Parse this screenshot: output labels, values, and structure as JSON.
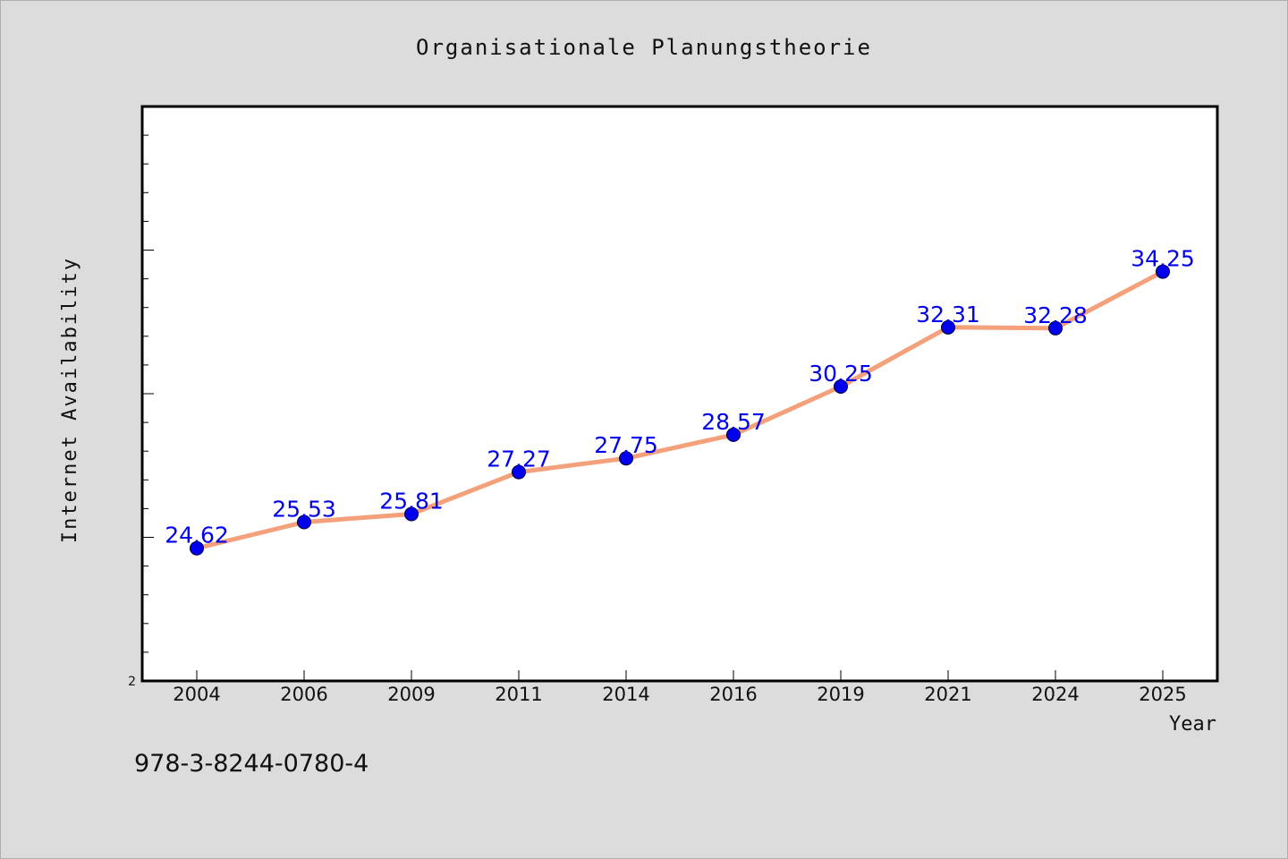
{
  "chart_data": {
    "type": "line",
    "title": "Organisationale Planungstheorie",
    "xlabel": "Year",
    "ylabel": "Internet Availability",
    "categories": [
      "2004",
      "2006",
      "2009",
      "2011",
      "2014",
      "2016",
      "2019",
      "2021",
      "2024",
      "2025"
    ],
    "series": [
      {
        "values": [
          24.62,
          25.53,
          25.81,
          27.27,
          27.75,
          28.57,
          30.25,
          32.31,
          32.28,
          34.25
        ],
        "labels": [
          "24.62",
          "25.53",
          "25.81",
          "27.27",
          "27.75",
          "28.57",
          "30.25",
          "32.31",
          "32.28",
          "34.25"
        ],
        "line_color": "#f4a07a",
        "marker_color": "#0000ee",
        "label_color": "#0000ee"
      }
    ],
    "y_tick_labels": [
      "2"
    ],
    "ylim": [
      20,
      40
    ],
    "grid": false,
    "legend": "none"
  },
  "footer_text": "978-3-8244-0780-4",
  "colors": {
    "background": "#dcdcdc",
    "plot_background": "#ffffff",
    "axis": "#000000"
  }
}
